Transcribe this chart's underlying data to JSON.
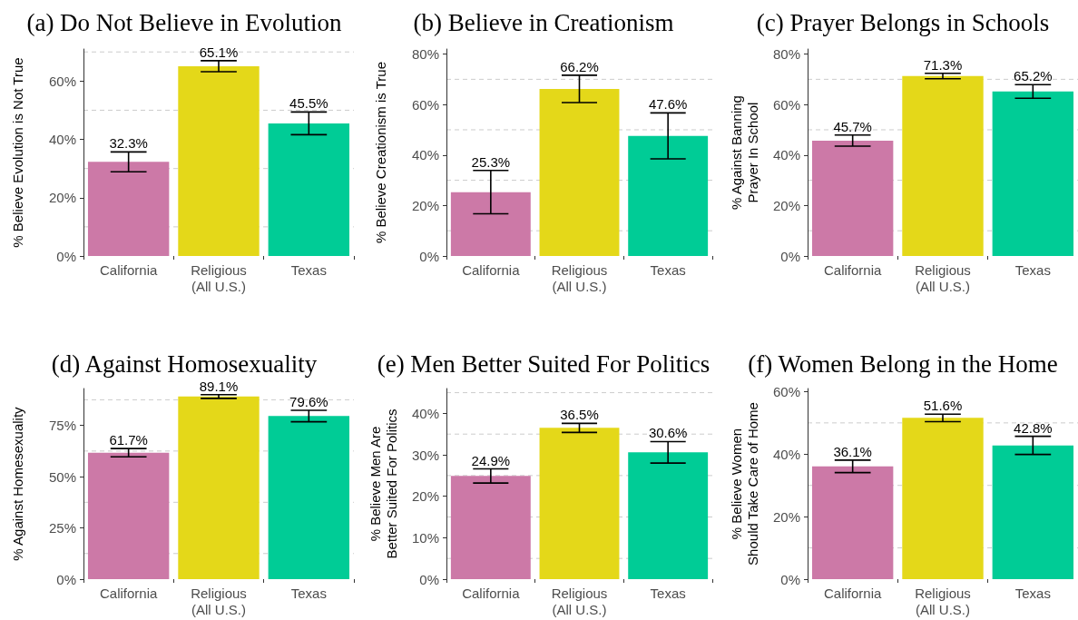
{
  "chart_data": [
    {
      "type": "bar",
      "title": "(a) Do Not Believe in Evolution",
      "ylabel": "% Believe Evolution is Not True",
      "categories": [
        "California",
        "Religious\n(All U.S.)",
        "Texas"
      ],
      "values": [
        32.3,
        65.1,
        45.5
      ],
      "colors": [
        "#cc79a7",
        "#e4d819",
        "#00cc96"
      ],
      "errors": [
        3.4,
        1.9,
        3.9
      ],
      "value_labels": [
        "32.3%",
        "65.1%",
        "45.5%"
      ],
      "ylim": [
        0,
        71
      ],
      "yticks": [
        {
          "value": 0,
          "label": "0%"
        },
        {
          "value": 20,
          "label": "20%"
        },
        {
          "value": 40,
          "label": "40%"
        },
        {
          "value": 60,
          "label": "60%"
        }
      ],
      "grid": true
    },
    {
      "type": "bar",
      "title": "(b) Believe in Creationism",
      "ylabel": "% Believe Creationism is True",
      "categories": [
        "California",
        "Religious\n(All U.S.)",
        "Texas"
      ],
      "values": [
        25.3,
        66.2,
        47.6
      ],
      "colors": [
        "#cc79a7",
        "#e4d819",
        "#00cc96"
      ],
      "errors": [
        8.6,
        5.4,
        9.1
      ],
      "value_labels": [
        "25.3%",
        "66.2%",
        "47.6%"
      ],
      "ylim": [
        0,
        82
      ],
      "yticks": [
        {
          "value": 0,
          "label": "0%"
        },
        {
          "value": 20,
          "label": "20%"
        },
        {
          "value": 40,
          "label": "40%"
        },
        {
          "value": 60,
          "label": "60%"
        },
        {
          "value": 80,
          "label": "80%"
        }
      ],
      "grid": true
    },
    {
      "type": "bar",
      "title": "(c) Prayer Belongs in Schools",
      "ylabel": "% Against Banning\nPrayer In School",
      "categories": [
        "California",
        "Religious\n(All U.S.)",
        "Texas"
      ],
      "values": [
        45.7,
        71.3,
        65.2
      ],
      "colors": [
        "#cc79a7",
        "#e4d819",
        "#00cc96"
      ],
      "errors": [
        2.2,
        1.1,
        2.7
      ],
      "value_labels": [
        "45.7%",
        "71.3%",
        "65.2%"
      ],
      "ylim": [
        0,
        82
      ],
      "yticks": [
        {
          "value": 0,
          "label": "0%"
        },
        {
          "value": 20,
          "label": "20%"
        },
        {
          "value": 40,
          "label": "40%"
        },
        {
          "value": 60,
          "label": "60%"
        },
        {
          "value": 80,
          "label": "80%"
        }
      ],
      "grid": true
    },
    {
      "type": "bar",
      "title": "(d) Against Homosexuality",
      "ylabel": "% Against Homesexuality",
      "categories": [
        "California",
        "Religious\n(All U.S.)",
        "Texas"
      ],
      "values": [
        61.7,
        89.1,
        79.6
      ],
      "colors": [
        "#cc79a7",
        "#e4d819",
        "#00cc96"
      ],
      "errors": [
        2.0,
        0.9,
        2.8
      ],
      "value_labels": [
        "61.7%",
        "89.1%",
        "79.6%"
      ],
      "ylim": [
        0,
        93
      ],
      "yticks": [
        {
          "value": 0,
          "label": "0%"
        },
        {
          "value": 25,
          "label": "25%"
        },
        {
          "value": 50,
          "label": "50%"
        },
        {
          "value": 75,
          "label": "75%"
        }
      ],
      "grid": true
    },
    {
      "type": "bar",
      "title": "(e) Men Better Suited For Politics",
      "ylabel": "% Believe Men Are\nBetter Suited For Politics",
      "categories": [
        "California",
        "Religious\n(All U.S.)",
        "Texas"
      ],
      "values": [
        24.9,
        36.5,
        30.6
      ],
      "colors": [
        "#cc79a7",
        "#e4d819",
        "#00cc96"
      ],
      "errors": [
        1.7,
        1.1,
        2.6
      ],
      "value_labels": [
        "24.9%",
        "36.5%",
        "30.6%"
      ],
      "ylim": [
        0,
        46
      ],
      "yticks": [
        {
          "value": 0,
          "label": "0%"
        },
        {
          "value": 10,
          "label": "10%"
        },
        {
          "value": 20,
          "label": "20%"
        },
        {
          "value": 30,
          "label": "30%"
        },
        {
          "value": 40,
          "label": "40%"
        }
      ],
      "grid": true
    },
    {
      "type": "bar",
      "title": "(f) Women Belong in the Home",
      "ylabel": "% Believe Women\nShould Take Care of Home",
      "categories": [
        "California",
        "Religious\n(All U.S.)",
        "Texas"
      ],
      "values": [
        36.1,
        51.6,
        42.8
      ],
      "colors": [
        "#cc79a7",
        "#e4d819",
        "#00cc96"
      ],
      "errors": [
        2.0,
        1.2,
        2.9
      ],
      "value_labels": [
        "36.1%",
        "51.6%",
        "42.8%"
      ],
      "ylim": [
        0,
        61
      ],
      "yticks": [
        {
          "value": 0,
          "label": "0%"
        },
        {
          "value": 20,
          "label": "20%"
        },
        {
          "value": 40,
          "label": "40%"
        },
        {
          "value": 60,
          "label": "60%"
        }
      ],
      "grid": true
    }
  ]
}
